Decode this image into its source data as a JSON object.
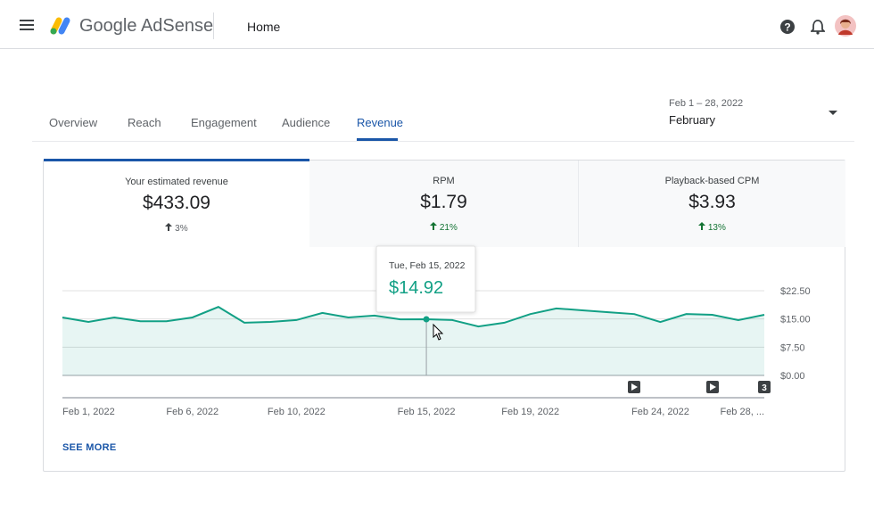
{
  "header": {
    "product": "Google AdSense",
    "page": "Home"
  },
  "tabs": [
    "Overview",
    "Reach",
    "Engagement",
    "Audience",
    "Revenue"
  ],
  "date_range": {
    "range": "Feb 1 – 28, 2022",
    "month": "February"
  },
  "metrics": [
    {
      "label": "Your estimated revenue",
      "value": "$433.09",
      "change": "3%"
    },
    {
      "label": "RPM",
      "value": "$1.79",
      "change": "21%"
    },
    {
      "label": "Playback-based CPM",
      "value": "$3.93",
      "change": "13%"
    }
  ],
  "chart_data": {
    "type": "line",
    "x": [
      "Feb 1, 2022",
      null,
      null,
      null,
      null,
      "Feb 6, 2022",
      null,
      null,
      null,
      "Feb 10, 2022",
      null,
      null,
      null,
      null,
      "Feb 15, 2022",
      null,
      null,
      null,
      "Feb 19, 2022",
      null,
      null,
      null,
      null,
      "Feb 24, 2022",
      null,
      null,
      null,
      "Feb 28, ..."
    ],
    "values": [
      15.4,
      14.2,
      15.4,
      14.4,
      14.4,
      15.4,
      18.2,
      14.0,
      14.2,
      14.7,
      16.6,
      15.4,
      15.9,
      14.9,
      14.92,
      14.7,
      13.0,
      14.0,
      16.3,
      17.8,
      17.3,
      16.8,
      16.3,
      14.2,
      16.3,
      16.1,
      14.7,
      16.1
    ],
    "color": "#12a085",
    "ylim": [
      0,
      22.5
    ],
    "yticks": [
      {
        "value": 0,
        "label": "$0.00"
      },
      {
        "value": 7.5,
        "label": "$7.50"
      },
      {
        "value": 15,
        "label": "$15.00"
      },
      {
        "value": 22.5,
        "label": "$22.50"
      }
    ],
    "grid": true,
    "tooltip": {
      "date": "Tue, Feb 15, 2022",
      "value": "$14.92"
    },
    "badge": "3"
  },
  "see_more": "SEE MORE"
}
